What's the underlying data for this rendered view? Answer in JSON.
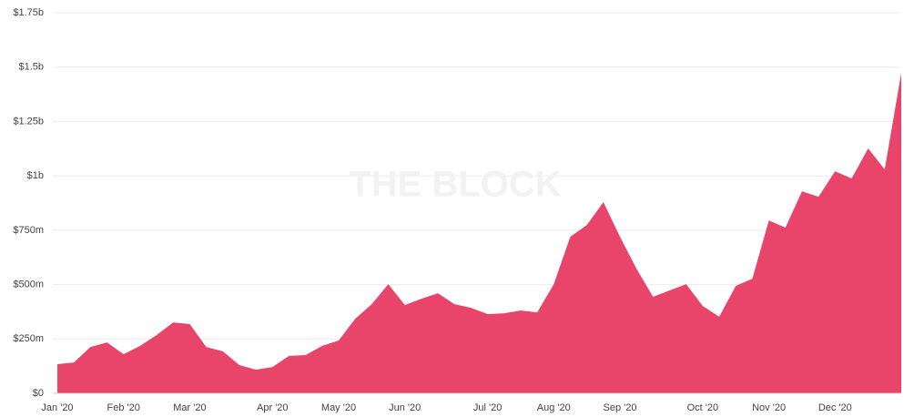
{
  "chart_data": {
    "type": "area",
    "watermark": "THE BLOCK",
    "color": "#e9446a",
    "grid": true,
    "categories": [
      "Jan '20",
      null,
      null,
      null,
      "Feb '20",
      null,
      null,
      null,
      "Mar '20",
      null,
      null,
      null,
      null,
      "Apr '20",
      null,
      null,
      null,
      "May '20",
      null,
      null,
      null,
      "Jun '20",
      null,
      null,
      null,
      null,
      "Jul '20",
      null,
      null,
      null,
      "Aug '20",
      null,
      null,
      null,
      "Sep '20",
      null,
      null,
      null,
      null,
      "Oct '20",
      null,
      null,
      null,
      "Nov '20",
      null,
      null,
      null,
      "Dec '20",
      null,
      null,
      null,
      null
    ],
    "values": [
      134000000,
      142000000,
      213000000,
      234000000,
      180000000,
      218000000,
      268000000,
      326000000,
      318000000,
      213000000,
      193000000,
      130000000,
      109000000,
      121000000,
      172000000,
      176000000,
      218000000,
      243000000,
      343000000,
      410000000,
      502000000,
      406000000,
      435000000,
      460000000,
      410000000,
      393000000,
      364000000,
      368000000,
      381000000,
      372000000,
      502000000,
      720000000,
      774000000,
      879000000,
      720000000,
      573000000,
      444000000,
      473000000,
      502000000,
      402000000,
      352000000,
      494000000,
      527000000,
      795000000,
      762000000,
      929000000,
      904000000,
      1021000000,
      988000000,
      1126000000,
      1030000000,
      1473000000
    ],
    "ylim": [
      0,
      1750000000
    ],
    "yticks": [
      {
        "value": 0,
        "label": "$0"
      },
      {
        "value": 250000000,
        "label": "$250m"
      },
      {
        "value": 500000000,
        "label": "$500m"
      },
      {
        "value": 750000000,
        "label": "$750m"
      },
      {
        "value": 1000000000,
        "label": "$1b"
      },
      {
        "value": 1250000000,
        "label": "$1.25b"
      },
      {
        "value": 1500000000,
        "label": "$1.5b"
      },
      {
        "value": 1750000000,
        "label": "$1.75b"
      }
    ]
  }
}
